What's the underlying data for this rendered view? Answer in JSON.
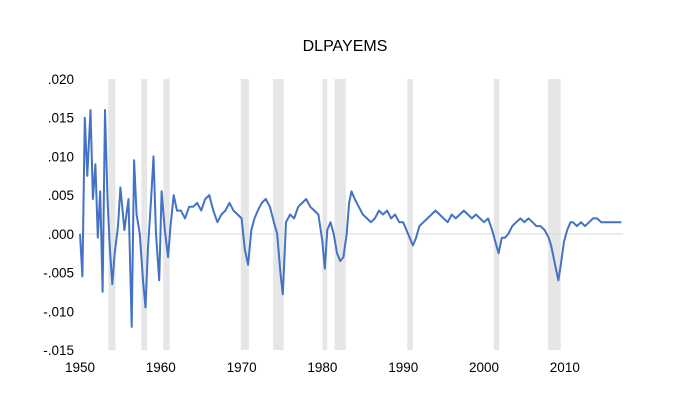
{
  "chart_data": {
    "type": "line",
    "title": "DLPAYEMS",
    "xlabel": "",
    "ylabel": "",
    "xlim": [
      1950,
      2017.2
    ],
    "ylim": [
      -0.015,
      0.02
    ],
    "x_ticks": [
      1950,
      1960,
      1970,
      1980,
      1990,
      2000,
      2010
    ],
    "x_tick_labels": [
      "1950",
      "1960",
      "1970",
      "1980",
      "1990",
      "2000",
      "2010"
    ],
    "y_ticks": [
      0.02,
      0.015,
      0.01,
      0.005,
      0.0,
      -0.005,
      -0.01,
      -0.015
    ],
    "y_tick_labels": [
      ".020",
      ".015",
      ".010",
      ".005",
      ".000",
      "-.005",
      "-.010",
      "-.015"
    ],
    "grid": false,
    "zero_line": true,
    "recession_shading": [
      [
        1953.5,
        1954.4
      ],
      [
        1957.6,
        1958.3
      ],
      [
        1960.3,
        1961.1
      ],
      [
        1969.9,
        1970.9
      ],
      [
        1973.9,
        1975.2
      ],
      [
        1980.0,
        1980.6
      ],
      [
        1981.5,
        1982.9
      ],
      [
        1990.5,
        1991.2
      ],
      [
        2001.2,
        2001.9
      ],
      [
        2007.9,
        2009.5
      ]
    ],
    "series": [
      {
        "color": "#4472C4",
        "x": [
          1950.0,
          1950.3,
          1950.6,
          1950.9,
          1951.3,
          1951.6,
          1951.9,
          1952.2,
          1952.5,
          1952.8,
          1953.1,
          1953.4,
          1953.7,
          1954.0,
          1954.3,
          1954.7,
          1955.0,
          1955.5,
          1956.0,
          1956.4,
          1956.7,
          1957.0,
          1957.4,
          1957.8,
          1958.1,
          1958.4,
          1958.8,
          1959.1,
          1959.4,
          1959.8,
          1960.1,
          1960.5,
          1960.9,
          1961.2,
          1961.6,
          1962.0,
          1962.5,
          1963.0,
          1963.5,
          1964.0,
          1964.5,
          1965.0,
          1965.5,
          1966.0,
          1966.5,
          1967.0,
          1967.5,
          1968.0,
          1968.5,
          1969.0,
          1969.5,
          1970.0,
          1970.4,
          1970.8,
          1971.2,
          1971.6,
          1972.0,
          1972.5,
          1973.0,
          1973.5,
          1974.0,
          1974.4,
          1974.8,
          1975.1,
          1975.5,
          1976.0,
          1976.5,
          1977.0,
          1977.5,
          1978.0,
          1978.5,
          1979.0,
          1979.5,
          1980.0,
          1980.3,
          1980.6,
          1981.0,
          1981.4,
          1981.8,
          1982.2,
          1982.6,
          1983.0,
          1983.3,
          1983.6,
          1984.0,
          1984.5,
          1985.0,
          1985.5,
          1986.0,
          1986.5,
          1987.0,
          1987.5,
          1988.0,
          1988.5,
          1989.0,
          1989.5,
          1990.0,
          1990.4,
          1990.8,
          1991.2,
          1991.6,
          1992.0,
          1992.5,
          1993.0,
          1993.5,
          1994.0,
          1994.5,
          1995.0,
          1995.5,
          1996.0,
          1996.5,
          1997.0,
          1997.5,
          1998.0,
          1998.5,
          1999.0,
          1999.5,
          2000.0,
          2000.5,
          2001.0,
          2001.4,
          2001.8,
          2002.2,
          2002.6,
          2003.0,
          2003.5,
          2004.0,
          2004.5,
          2005.0,
          2005.5,
          2006.0,
          2006.5,
          2007.0,
          2007.5,
          2008.0,
          2008.3,
          2008.6,
          2008.9,
          2009.2,
          2009.5,
          2009.9,
          2010.3,
          2010.7,
          2011.0,
          2011.5,
          2012.0,
          2012.5,
          2013.0,
          2013.5,
          2014.0,
          2014.5,
          2015.0,
          2015.5,
          2016.0,
          2016.5,
          2017.0
        ],
        "values": [
          0.0,
          -0.0055,
          0.015,
          0.0075,
          0.016,
          0.0045,
          0.009,
          -0.0005,
          0.0055,
          -0.0075,
          0.016,
          0.0045,
          -0.002,
          -0.0065,
          -0.0025,
          0.001,
          0.006,
          0.0005,
          0.0045,
          -0.012,
          0.0095,
          0.0025,
          0.0,
          -0.006,
          -0.0095,
          -0.002,
          0.0045,
          0.01,
          0.0,
          -0.006,
          0.0055,
          0.0005,
          -0.003,
          0.001,
          0.005,
          0.003,
          0.003,
          0.002,
          0.0035,
          0.0035,
          0.004,
          0.003,
          0.0045,
          0.005,
          0.003,
          0.0015,
          0.0025,
          0.003,
          0.004,
          0.003,
          0.0025,
          0.002,
          -0.002,
          -0.004,
          0.0005,
          0.002,
          0.003,
          0.004,
          0.0045,
          0.0035,
          0.0015,
          0.0,
          -0.005,
          -0.0078,
          0.0015,
          0.0025,
          0.002,
          0.0035,
          0.004,
          0.0045,
          0.0035,
          0.003,
          0.0025,
          -0.001,
          -0.0045,
          0.0005,
          0.0015,
          0.0,
          -0.0025,
          -0.0035,
          -0.003,
          0.0,
          0.004,
          0.0055,
          0.0045,
          0.0035,
          0.0025,
          0.002,
          0.0015,
          0.002,
          0.003,
          0.0025,
          0.003,
          0.002,
          0.0025,
          0.0015,
          0.0015,
          0.0005,
          -0.0005,
          -0.0015,
          -0.0005,
          0.001,
          0.0015,
          0.002,
          0.0025,
          0.003,
          0.0025,
          0.002,
          0.0015,
          0.0025,
          0.002,
          0.0025,
          0.003,
          0.0025,
          0.002,
          0.0025,
          0.002,
          0.0015,
          0.002,
          0.0005,
          -0.001,
          -0.0025,
          -0.0005,
          -0.0005,
          0.0,
          0.001,
          0.0015,
          0.002,
          0.0015,
          0.002,
          0.0015,
          0.001,
          0.001,
          0.0005,
          -0.0005,
          -0.0015,
          -0.003,
          -0.0045,
          -0.006,
          -0.004,
          -0.001,
          0.0005,
          0.0015,
          0.0015,
          0.001,
          0.0015,
          0.001,
          0.0015,
          0.002,
          0.002,
          0.0015,
          0.0015,
          0.0015,
          0.0015,
          0.0015,
          0.0015
        ]
      }
    ]
  }
}
